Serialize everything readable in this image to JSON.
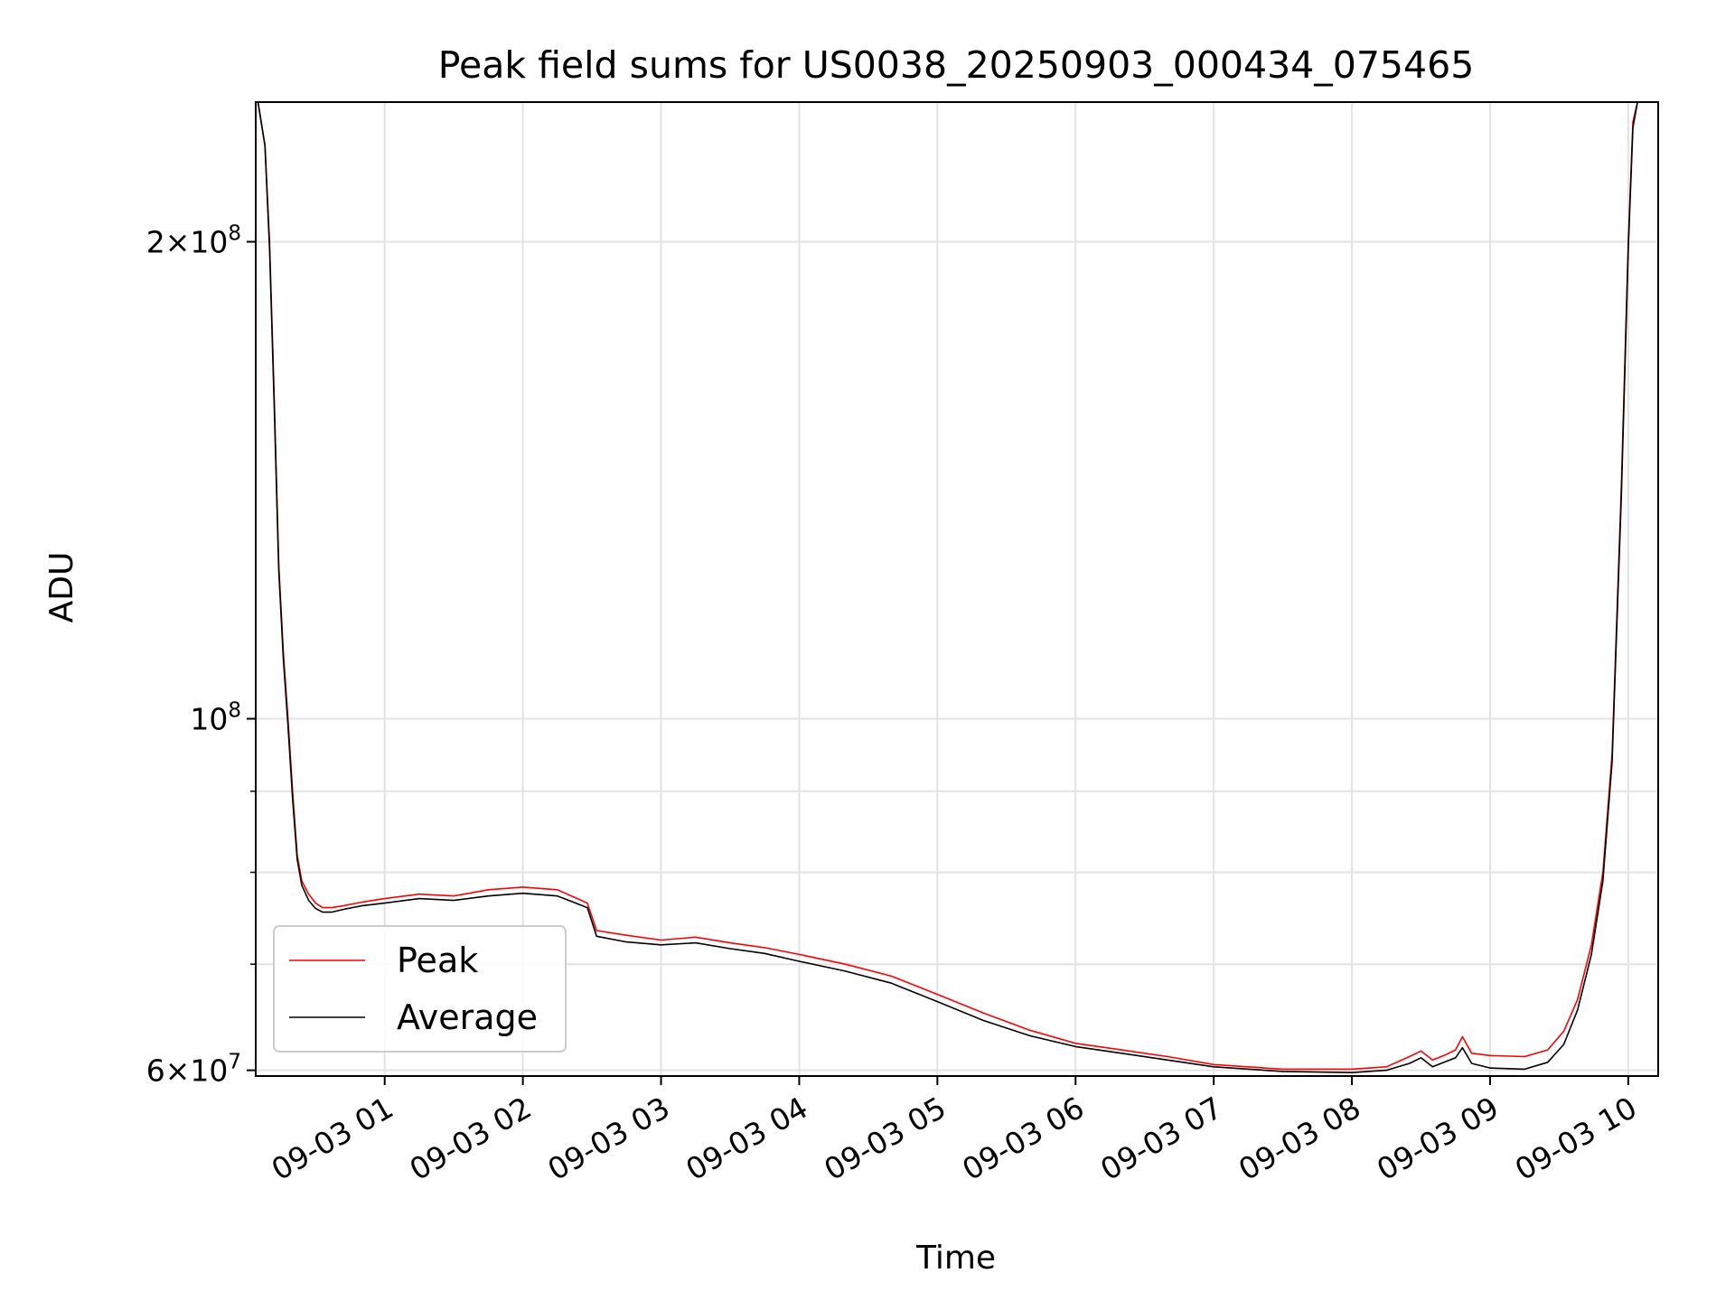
{
  "chart_data": {
    "type": "line",
    "title": "Peak field sums for US0038_20250903_000434_075465",
    "xlabel": "Time",
    "ylabel": "ADU",
    "yscale": "log",
    "ylim": [
      59500000,
      245000000
    ],
    "xlim": [
      "2025-09-03 00:04",
      "2025-09-03 10:13"
    ],
    "grid": true,
    "legend_position": "lower-left",
    "x_ticks": [
      "09-03 01",
      "09-03 02",
      "09-03 03",
      "09-03 04",
      "09-03 05",
      "09-03 06",
      "09-03 07",
      "09-03 08",
      "09-03 09",
      "09-03 10"
    ],
    "x_tick_values": [
      "2025-09-03 01:00",
      "2025-09-03 02:00",
      "2025-09-03 03:00",
      "2025-09-03 04:00",
      "2025-09-03 05:00",
      "2025-09-03 06:00",
      "2025-09-03 07:00",
      "2025-09-03 08:00",
      "2025-09-03 09:00",
      "2025-09-03 10:00"
    ],
    "y_ticks_major": [
      {
        "value": 200000000,
        "mantissa": "2",
        "times": "×",
        "base": "10",
        "exp": "8"
      },
      {
        "value": 100000000,
        "mantissa": "",
        "times": "",
        "base": "10",
        "exp": "8"
      },
      {
        "value": 60000000,
        "mantissa": "6",
        "times": "×",
        "base": "10",
        "exp": "7"
      }
    ],
    "y_ticks_minor": [
      70000000,
      80000000,
      90000000
    ],
    "series": [
      {
        "name": "Peak",
        "color": "#ff0000",
        "x": [
          "2025-09-03 00:05",
          "2025-09-03 00:08",
          "2025-09-03 00:10",
          "2025-09-03 00:12",
          "2025-09-03 00:14",
          "2025-09-03 00:16",
          "2025-09-03 00:18",
          "2025-09-03 00:20",
          "2025-09-03 00:22",
          "2025-09-03 00:24",
          "2025-09-03 00:27",
          "2025-09-03 00:30",
          "2025-09-03 00:33",
          "2025-09-03 00:37",
          "2025-09-03 00:42",
          "2025-09-03 00:50",
          "2025-09-03 01:00",
          "2025-09-03 01:15",
          "2025-09-03 01:30",
          "2025-09-03 01:45",
          "2025-09-03 02:00",
          "2025-09-03 02:15",
          "2025-09-03 02:28",
          "2025-09-03 02:32",
          "2025-09-03 02:45",
          "2025-09-03 03:00",
          "2025-09-03 03:15",
          "2025-09-03 03:30",
          "2025-09-03 03:45",
          "2025-09-03 04:00",
          "2025-09-03 04:20",
          "2025-09-03 04:40",
          "2025-09-03 05:00",
          "2025-09-03 05:20",
          "2025-09-03 05:40",
          "2025-09-03 06:00",
          "2025-09-03 06:20",
          "2025-09-03 06:40",
          "2025-09-03 07:00",
          "2025-09-03 07:30",
          "2025-09-03 08:00",
          "2025-09-03 08:15",
          "2025-09-03 08:25",
          "2025-09-03 08:30",
          "2025-09-03 08:35",
          "2025-09-03 08:40",
          "2025-09-03 08:45",
          "2025-09-03 08:48",
          "2025-09-03 08:52",
          "2025-09-03 09:00",
          "2025-09-03 09:15",
          "2025-09-03 09:25",
          "2025-09-03 09:32",
          "2025-09-03 09:38",
          "2025-09-03 09:44",
          "2025-09-03 09:49",
          "2025-09-03 09:53",
          "2025-09-03 09:57",
          "2025-09-03 10:00",
          "2025-09-03 10:02",
          "2025-09-03 10:04",
          "2025-09-03 10:07"
        ],
        "y": [
          245000000,
          230000000,
          200000000,
          160000000,
          125000000,
          110000000,
          100000000,
          90000000,
          82000000,
          79000000,
          77500000,
          76500000,
          76000000,
          76000000,
          76200000,
          76600000,
          77000000,
          77500000,
          77300000,
          78000000,
          78300000,
          78000000,
          76500000,
          73500000,
          73000000,
          72500000,
          72800000,
          72200000,
          71700000,
          71000000,
          70000000,
          68800000,
          67000000,
          65200000,
          63600000,
          62400000,
          61800000,
          61200000,
          60500000,
          60100000,
          60100000,
          60300000,
          61200000,
          61700000,
          60900000,
          61300000,
          61800000,
          63000000,
          61500000,
          61300000,
          61200000,
          61800000,
          63500000,
          66500000,
          72000000,
          80000000,
          95000000,
          140000000,
          200000000,
          238000000,
          245000000,
          245000000
        ]
      },
      {
        "name": "Average",
        "color": "#000000",
        "x": [
          "2025-09-03 00:05",
          "2025-09-03 00:08",
          "2025-09-03 00:10",
          "2025-09-03 00:12",
          "2025-09-03 00:14",
          "2025-09-03 00:16",
          "2025-09-03 00:18",
          "2025-09-03 00:20",
          "2025-09-03 00:22",
          "2025-09-03 00:24",
          "2025-09-03 00:27",
          "2025-09-03 00:30",
          "2025-09-03 00:33",
          "2025-09-03 00:37",
          "2025-09-03 00:42",
          "2025-09-03 00:50",
          "2025-09-03 01:00",
          "2025-09-03 01:15",
          "2025-09-03 01:30",
          "2025-09-03 01:45",
          "2025-09-03 02:00",
          "2025-09-03 02:15",
          "2025-09-03 02:28",
          "2025-09-03 02:32",
          "2025-09-03 02:45",
          "2025-09-03 03:00",
          "2025-09-03 03:15",
          "2025-09-03 03:30",
          "2025-09-03 03:45",
          "2025-09-03 04:00",
          "2025-09-03 04:20",
          "2025-09-03 04:40",
          "2025-09-03 05:00",
          "2025-09-03 05:20",
          "2025-09-03 05:40",
          "2025-09-03 06:00",
          "2025-09-03 06:20",
          "2025-09-03 06:40",
          "2025-09-03 07:00",
          "2025-09-03 07:30",
          "2025-09-03 08:00",
          "2025-09-03 08:15",
          "2025-09-03 08:25",
          "2025-09-03 08:30",
          "2025-09-03 08:35",
          "2025-09-03 08:40",
          "2025-09-03 08:45",
          "2025-09-03 08:48",
          "2025-09-03 08:52",
          "2025-09-03 09:00",
          "2025-09-03 09:15",
          "2025-09-03 09:25",
          "2025-09-03 09:32",
          "2025-09-03 09:38",
          "2025-09-03 09:44",
          "2025-09-03 09:49",
          "2025-09-03 09:53",
          "2025-09-03 09:57",
          "2025-09-03 10:00",
          "2025-09-03 10:02",
          "2025-09-03 10:04",
          "2025-09-03 10:07"
        ],
        "y": [
          245000000,
          230000000,
          198000000,
          158000000,
          124000000,
          109000000,
          99000000,
          89000000,
          81500000,
          78500000,
          76800000,
          75900000,
          75500000,
          75500000,
          75800000,
          76200000,
          76500000,
          77000000,
          76800000,
          77300000,
          77600000,
          77300000,
          76000000,
          72900000,
          72300000,
          72000000,
          72200000,
          71600000,
          71100000,
          70300000,
          69300000,
          68100000,
          66300000,
          64500000,
          63100000,
          62100000,
          61500000,
          60900000,
          60300000,
          59900000,
          59800000,
          60000000,
          60600000,
          61100000,
          60300000,
          60700000,
          61100000,
          62000000,
          60600000,
          60200000,
          60100000,
          60700000,
          62300000,
          65500000,
          71000000,
          79000000,
          94000000,
          138000000,
          198000000,
          236000000,
          245000000,
          245000000
        ]
      }
    ]
  }
}
